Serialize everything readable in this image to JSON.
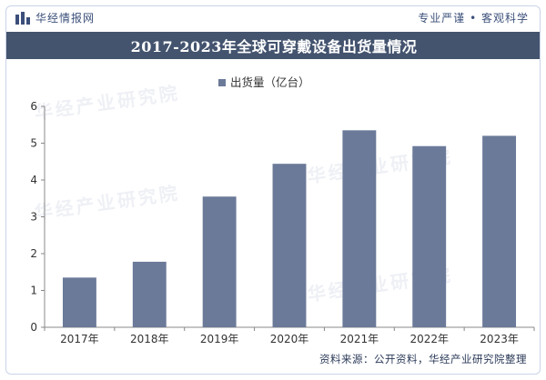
{
  "header": {
    "brand": "华经情报网",
    "slogan": "专业严谨 • 客观科学"
  },
  "watermark_text": "华经产业研究院",
  "source": "资料来源：公开资料，华经产业研究院整理",
  "colors": {
    "bar": "#6b7a99",
    "title_bg": "#44546f",
    "axis_text": "#333333",
    "grid": "#e3e3e3"
  },
  "chart_data": {
    "type": "bar",
    "title": "2017-2023年全球可穿戴设备出货量情况",
    "xlabel": "",
    "ylabel": "",
    "categories": [
      "2017年",
      "2018年",
      "2019年",
      "2020年",
      "2021年",
      "2022年",
      "2023年"
    ],
    "series": [
      {
        "name": "出货量（亿台）",
        "values": [
          1.35,
          1.78,
          3.55,
          4.44,
          5.35,
          4.92,
          5.2
        ]
      }
    ],
    "ylim": [
      0,
      6
    ],
    "yticks": [
      0,
      1,
      2,
      3,
      4,
      5,
      6
    ],
    "legend": "top-center",
    "grid": false
  }
}
